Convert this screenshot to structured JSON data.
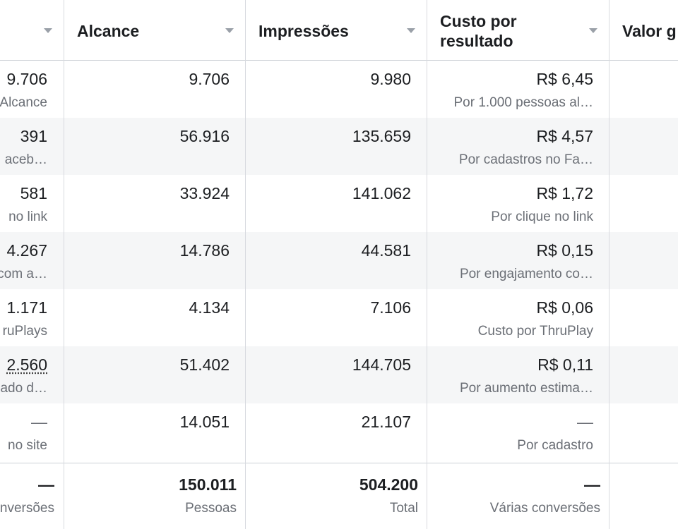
{
  "columns": [
    {
      "title": ""
    },
    {
      "title": "Alcance"
    },
    {
      "title": "Impressões"
    },
    {
      "title": "Custo por\nresultado"
    },
    {
      "title": "Valor g"
    }
  ],
  "rows": [
    {
      "result": "9.706",
      "result_sub": "Alcance",
      "reach": "9.706",
      "impressions": "9.980",
      "cost": "R$ 6,45",
      "cost_sub": "Por 1.000 pessoas al…"
    },
    {
      "result": "391",
      "result_sub": "aceb…",
      "reach": "56.916",
      "impressions": "135.659",
      "cost": "R$ 4,57",
      "cost_sub": "Por cadastros no Fa…"
    },
    {
      "result": "581",
      "result_sub": "no link",
      "reach": "33.924",
      "impressions": "141.062",
      "cost": "R$ 1,72",
      "cost_sub": "Por clique no link"
    },
    {
      "result": "4.267",
      "result_sub": "com a…",
      "reach": "14.786",
      "impressions": "44.581",
      "cost": "R$ 0,15",
      "cost_sub": "Por engajamento co…"
    },
    {
      "result": "1.171",
      "result_sub": "ruPlays",
      "reach": "4.134",
      "impressions": "7.106",
      "cost": "R$ 0,06",
      "cost_sub": "Custo por ThruPlay"
    },
    {
      "result": "2.560",
      "result_sub": "ado d…",
      "reach": "51.402",
      "impressions": "144.705",
      "cost": "R$ 0,11",
      "cost_sub": "Por aumento estima…"
    },
    {
      "result": "—",
      "result_sub": "no site",
      "reach": "14.051",
      "impressions": "21.107",
      "cost": "—",
      "cost_sub": "Por cadastro"
    }
  ],
  "totals": {
    "result": "—",
    "result_sub": "nversões",
    "reach": "150.011",
    "reach_sub": "Pessoas",
    "impressions": "504.200",
    "impressions_sub": "Total",
    "cost": "—",
    "cost_sub": "Várias conversões"
  }
}
